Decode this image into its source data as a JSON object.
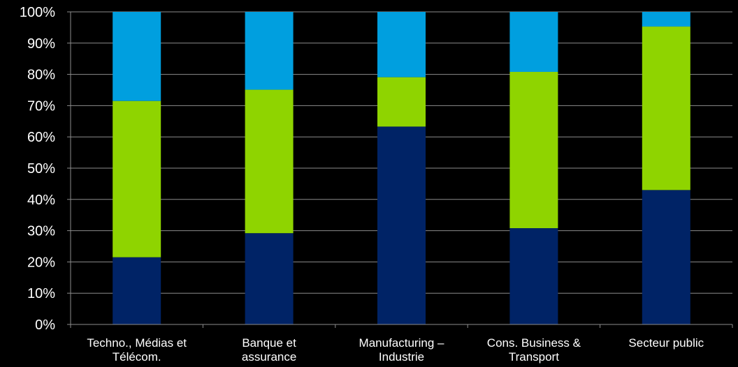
{
  "chart_data": {
    "type": "bar",
    "stacked": true,
    "categories": [
      [
        "Techno., Médias et",
        "Télécom."
      ],
      [
        "Banque et",
        "assurance"
      ],
      [
        "Manufacturing –",
        "Industrie"
      ],
      [
        "Cons. Business &",
        "Transport"
      ],
      [
        "Secteur public"
      ]
    ],
    "series": [
      {
        "values": [
          21.5,
          29.2,
          63.3,
          30.8,
          43.0
        ],
        "color": "#002366"
      },
      {
        "values": [
          50.0,
          45.9,
          15.8,
          50.0,
          52.3
        ],
        "color": "#8fd400"
      },
      {
        "values": [
          28.5,
          24.9,
          20.9,
          19.2,
          4.7
        ],
        "color": "#009fdf"
      }
    ],
    "ylim": [
      0,
      100
    ],
    "yticks": [
      "0%",
      "10%",
      "20%",
      "30%",
      "40%",
      "50%",
      "60%",
      "70%",
      "80%",
      "90%",
      "100%"
    ],
    "grid": true,
    "background": "#000000",
    "axis_color": "#8c8c8c",
    "gridline_color": "#8c8c8c",
    "text_color": "#ffffff"
  }
}
